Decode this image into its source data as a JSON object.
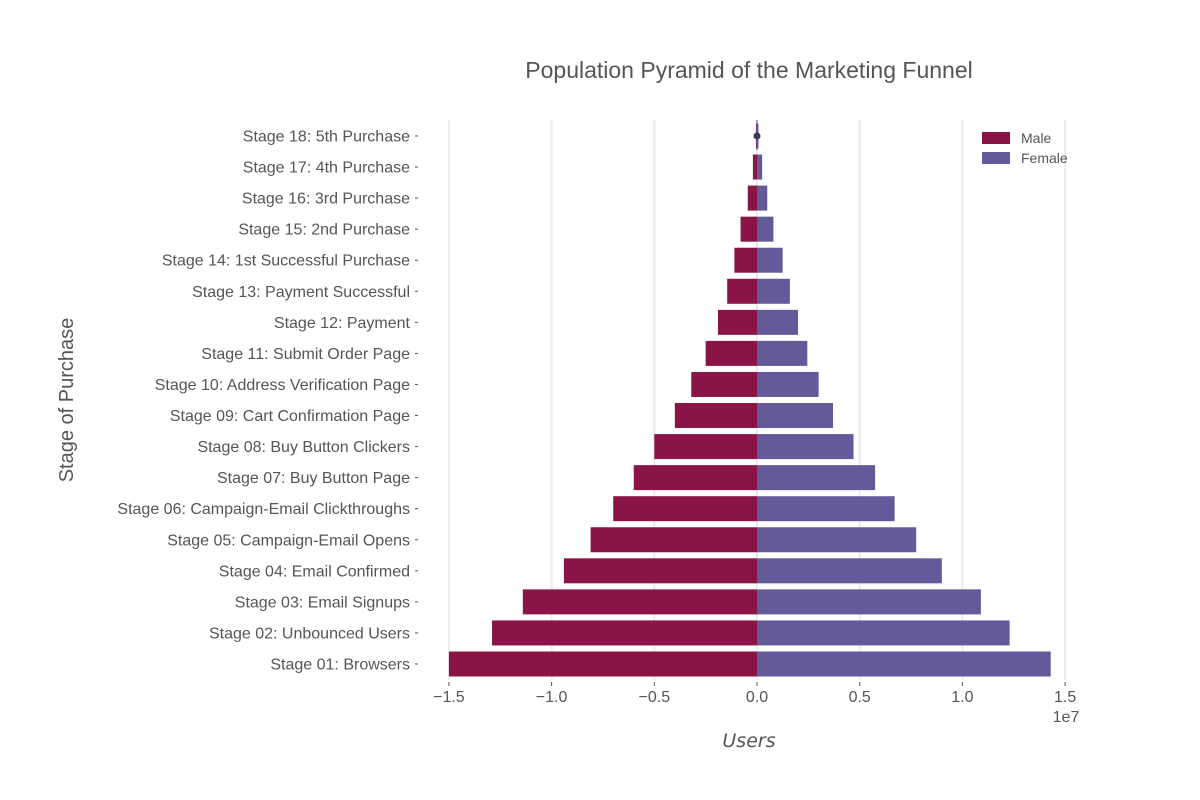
{
  "chart_data": {
    "type": "bar",
    "orientation": "horizontal",
    "title": "Population Pyramid of the Marketing Funnel",
    "xlabel": "Users",
    "ylabel": "Stage of Purchase",
    "x_scale_label": "1e7",
    "xlim": [
      -1.55,
      1.55
    ],
    "xticks": [
      -1.5,
      -1.0,
      -0.5,
      0.0,
      0.5,
      1.0,
      1.5
    ],
    "xtick_labels": [
      "−1.5",
      "−1.0",
      "−0.5",
      "0.0",
      "0.5",
      "1.0",
      "1.5"
    ],
    "grid": "vertical",
    "legend_position": "top-right",
    "categories": [
      "Stage 01: Browsers",
      "Stage 02: Unbounced Users",
      "Stage 03: Email Signups",
      "Stage 04: Email Confirmed",
      "Stage 05: Campaign-Email Opens",
      "Stage 06: Campaign-Email Clickthroughs",
      "Stage 07: Buy Button Page",
      "Stage 08: Buy Button Clickers",
      "Stage 09: Cart Confirmation Page",
      "Stage 10: Address Verification Page",
      "Stage 11: Submit Order Page",
      "Stage 12: Payment",
      "Stage 13: Payment Successful",
      "Stage 14: 1st Successful Purchase",
      "Stage 15: 2nd Purchase",
      "Stage 16: 3rd Purchase",
      "Stage 17: 4th Purchase",
      "Stage 18: 5th Purchase"
    ],
    "series": [
      {
        "name": "Male",
        "color": "#8b1446",
        "values": [
          -1.5,
          -1.29,
          -1.14,
          -0.94,
          -0.81,
          -0.7,
          -0.6,
          -0.5,
          -0.4,
          -0.32,
          -0.25,
          -0.19,
          -0.145,
          -0.11,
          -0.08,
          -0.045,
          -0.02,
          -0.005
        ]
      },
      {
        "name": "Female",
        "color": "#655a99",
        "values": [
          1.43,
          1.23,
          1.09,
          0.9,
          0.775,
          0.67,
          0.575,
          0.47,
          0.37,
          0.3,
          0.245,
          0.2,
          0.16,
          0.125,
          0.08,
          0.05,
          0.025,
          0.007
        ]
      }
    ]
  }
}
